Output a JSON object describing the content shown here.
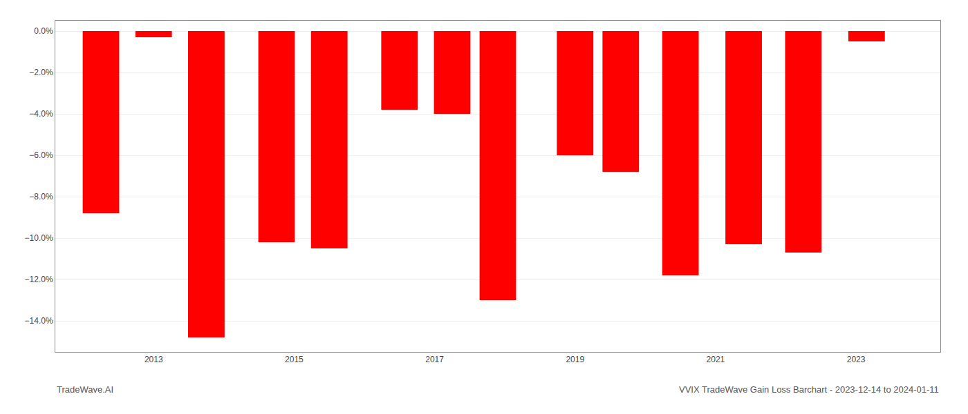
{
  "chart_data": {
    "type": "bar",
    "x": [
      2012.25,
      2013.0,
      2013.75,
      2014.75,
      2015.5,
      2016.5,
      2017.25,
      2017.9,
      2019.0,
      2019.65,
      2020.5,
      2021.4,
      2022.25,
      2023.15
    ],
    "values": [
      -8.8,
      -0.3,
      -14.8,
      -10.2,
      -10.5,
      -3.8,
      -4.0,
      -13.0,
      -6.0,
      -6.8,
      -11.8,
      -10.3,
      -10.7,
      -0.5
    ],
    "color": "#ff0000",
    "xlim": [
      2011.6,
      2024.2
    ],
    "xticks": [
      2013,
      2015,
      2017,
      2019,
      2021,
      2023
    ],
    "ylim": [
      -15.5,
      0.5
    ],
    "yticks": [
      {
        "value": 0.0,
        "label": "0.0%"
      },
      {
        "value": -2.0,
        "label": "−2.0%"
      },
      {
        "value": -4.0,
        "label": "−4.0%"
      },
      {
        "value": -6.0,
        "label": "−6.0%"
      },
      {
        "value": -8.0,
        "label": "−8.0%"
      },
      {
        "value": -10.0,
        "label": "−10.0%"
      },
      {
        "value": -12.0,
        "label": "−12.0%"
      },
      {
        "value": -14.0,
        "label": "−14.0%"
      }
    ],
    "grid": true,
    "annotations": [
      "TradeWave.AI",
      "VVIX TradeWave Gain Loss Barchart - 2023-12-14 to 2024-01-11"
    ]
  }
}
